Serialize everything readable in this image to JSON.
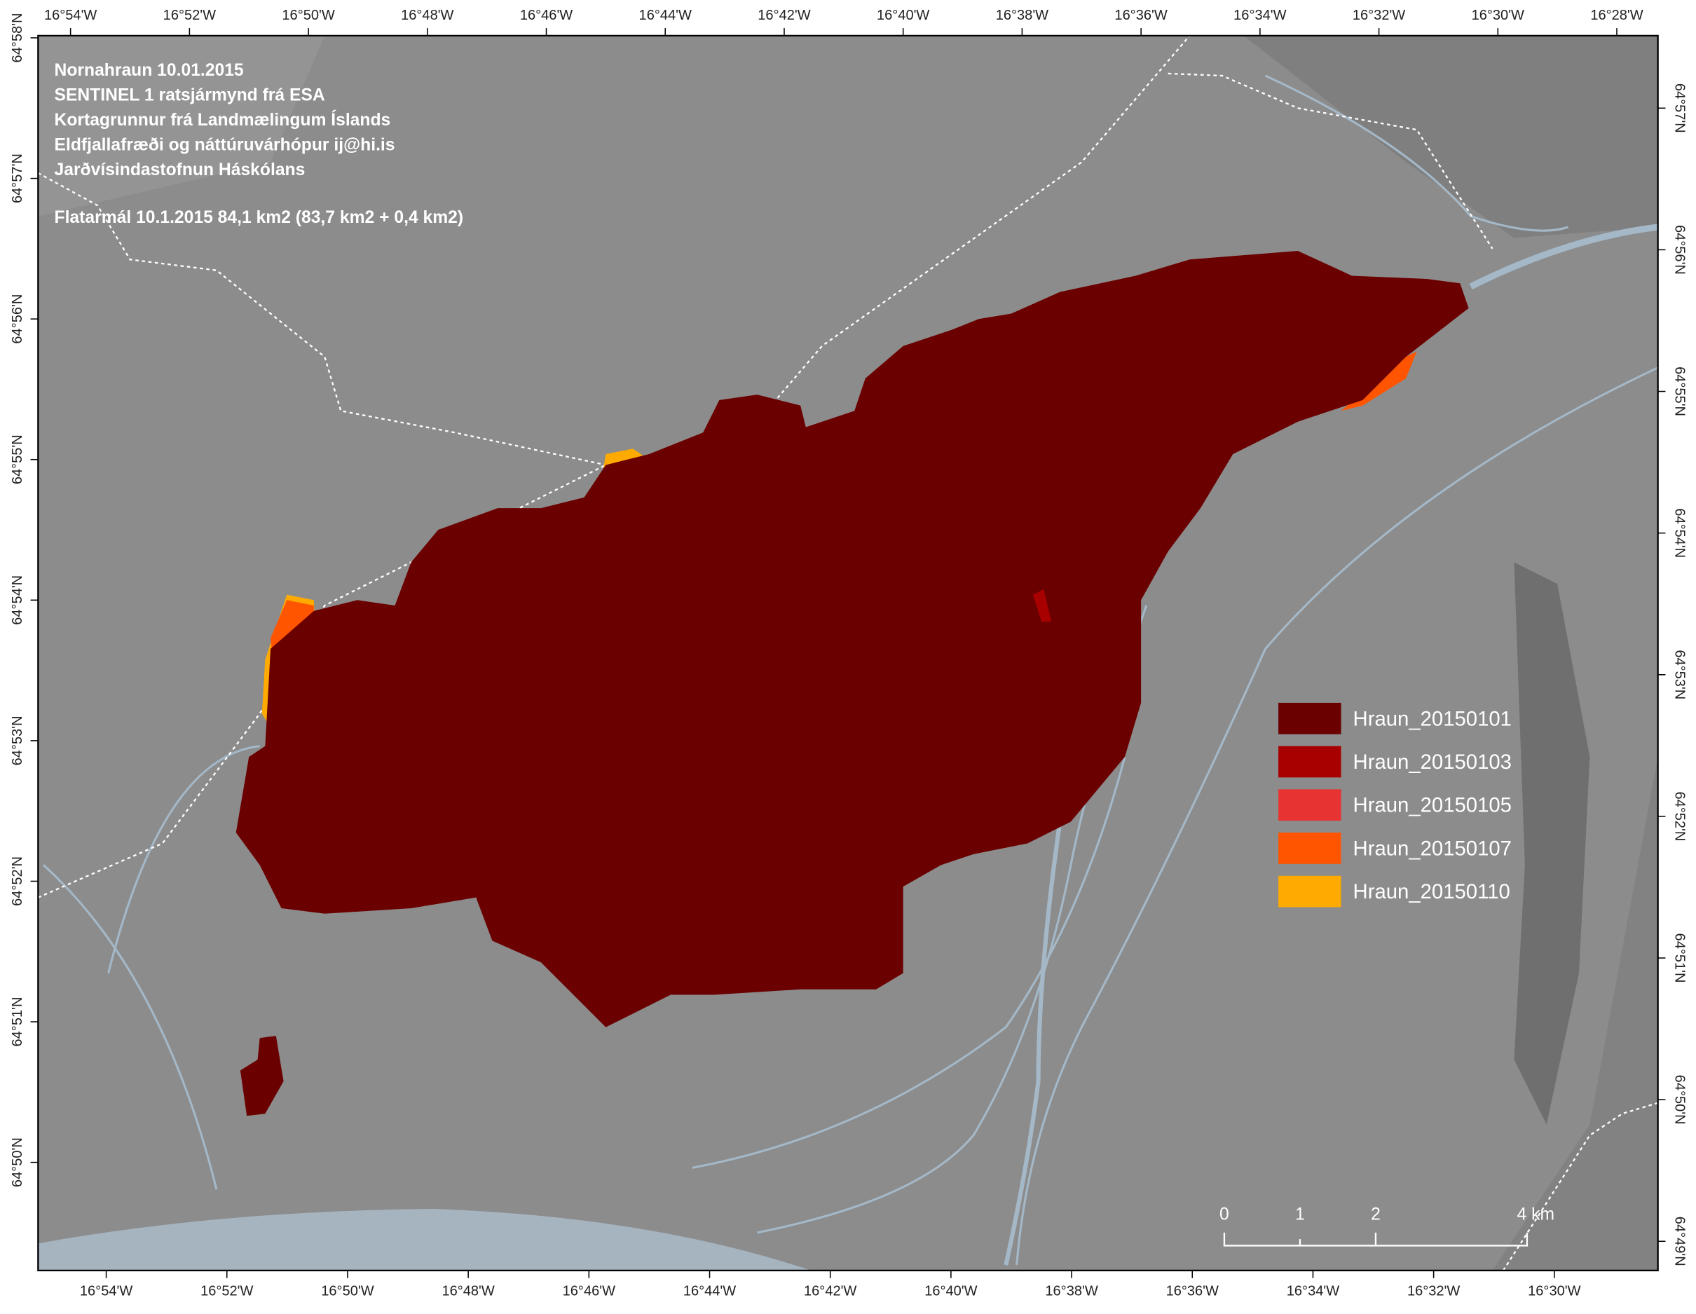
{
  "map": {
    "info_lines": [
      "Nornahraun 10.01.2015",
      "SENTINEL 1 ratsjármynd frá ESA",
      "Kortagrunnur frá Landmælingum Íslands",
      "Eldfjallafræði og náttúruvárhópur ij@hi.is",
      "Jarðvísindastofnun Háskólans"
    ],
    "area_text": "Flatarmál 10.1.2015   84,1 km2 (83,7 km2 + 0,4 km2)",
    "legend": [
      {
        "label": "Hraun_20150101",
        "color": "#6b0000"
      },
      {
        "label": "Hraun_20150103",
        "color": "#a80000"
      },
      {
        "label": "Hraun_20150105",
        "color": "#e83333"
      },
      {
        "label": "Hraun_20150107",
        "color": "#ff5500"
      },
      {
        "label": "Hraun_20150110",
        "color": "#ffaa00"
      }
    ],
    "scale_bar": [
      "0",
      "1",
      "2",
      "4 km"
    ],
    "frame": {
      "top_labels": [
        "16°54'W",
        "16°52'W",
        "16°50'W",
        "16°48'W",
        "16°46'W",
        "16°44'W",
        "16°42'W",
        "16°40'W",
        "16°38'W",
        "16°36'W",
        "16°34'W",
        "16°32'W",
        "16°30'W",
        "16°28'W"
      ],
      "bottom_labels": [
        "16°54'W",
        "16°52'W",
        "16°50'W",
        "16°48'W",
        "16°46'W",
        "16°44'W",
        "16°42'W",
        "16°40'W",
        "16°38'W",
        "16°36'W",
        "16°34'W",
        "16°32'W",
        "16°30'W"
      ],
      "left_labels": [
        "64°58'N",
        "64°57'N",
        "64°56'N",
        "64°55'N",
        "64°54'N",
        "64°53'N",
        "64°52'N",
        "64°51'N",
        "64°50'N"
      ],
      "right_labels": [
        "64°57'N",
        "64°56'N",
        "64°55'N",
        "64°54'N",
        "64°53'N",
        "64°52'N",
        "64°51'N",
        "64°50'N",
        "64°49'N"
      ]
    }
  }
}
